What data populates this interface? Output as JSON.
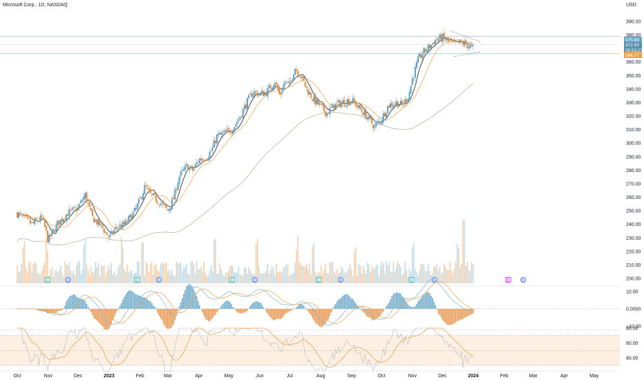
{
  "header": {
    "title": "Microsoft Corp., 1D, NASDAQ",
    "currency": "USD"
  },
  "chart_data": {
    "type": "candlestick",
    "title": "Microsoft Corp., 1D, NASDAQ",
    "currency": "USD",
    "grid": false,
    "price_axis": {
      "ylim": [
        198,
        392
      ],
      "ticks": [
        390,
        380,
        370,
        360,
        350,
        340,
        330,
        320,
        310,
        300,
        290,
        280,
        270,
        260,
        250,
        240,
        230,
        220,
        210,
        200
      ]
    },
    "x_axis": {
      "range_days": [
        0,
        243
      ],
      "ticks": [
        {
          "label": "Oct",
          "day": 0
        },
        {
          "label": "Nov",
          "day": 31
        },
        {
          "label": "Dec",
          "day": 61
        },
        {
          "label": "2023",
          "day": 92
        },
        {
          "label": "Feb",
          "day": 123
        },
        {
          "label": "Mar",
          "day": 151
        },
        {
          "label": "Apr",
          "day": 182
        },
        {
          "label": "May",
          "day": 212
        },
        {
          "label": "Jun",
          "day": 243
        },
        {
          "label": "Jul",
          "day": 273
        },
        {
          "label": "Aug",
          "day": 304
        },
        {
          "label": "Sep",
          "day": 335
        },
        {
          "label": "Oct",
          "day": 365
        },
        {
          "label": "Nov",
          "day": 396
        },
        {
          "label": "Dec",
          "day": 426
        },
        {
          "label": "2024",
          "day": 457
        },
        {
          "label": "Feb",
          "day": 488
        },
        {
          "label": "Mar",
          "day": 517
        },
        {
          "label": "Apr",
          "day": 548
        },
        {
          "label": "May",
          "day": 578
        }
      ],
      "last_bar_day": 457,
      "end_day": 610
    },
    "price_key": [
      [
        0,
        248
      ],
      [
        15,
        240
      ],
      [
        25,
        245
      ],
      [
        31,
        228
      ],
      [
        40,
        240
      ],
      [
        50,
        248
      ],
      [
        61,
        252
      ],
      [
        68,
        262
      ],
      [
        75,
        245
      ],
      [
        85,
        238
      ],
      [
        92,
        230
      ],
      [
        100,
        238
      ],
      [
        108,
        240
      ],
      [
        118,
        250
      ],
      [
        123,
        258
      ],
      [
        128,
        268
      ],
      [
        133,
        262
      ],
      [
        140,
        258
      ],
      [
        151,
        250
      ],
      [
        157,
        260
      ],
      [
        162,
        275
      ],
      [
        170,
        283
      ],
      [
        176,
        280
      ],
      [
        182,
        288
      ],
      [
        190,
        290
      ],
      [
        195,
        295
      ],
      [
        200,
        305
      ],
      [
        207,
        307
      ],
      [
        215,
        310
      ],
      [
        222,
        318
      ],
      [
        230,
        330
      ],
      [
        236,
        338
      ],
      [
        243,
        336
      ],
      [
        250,
        338
      ],
      [
        258,
        346
      ],
      [
        263,
        335
      ],
      [
        268,
        345
      ],
      [
        273,
        343
      ],
      [
        278,
        356
      ],
      [
        284,
        350
      ],
      [
        290,
        340
      ],
      [
        297,
        332
      ],
      [
        304,
        327
      ],
      [
        310,
        322
      ],
      [
        318,
        328
      ],
      [
        325,
        330
      ],
      [
        335,
        332
      ],
      [
        340,
        328
      ],
      [
        350,
        320
      ],
      [
        358,
        312
      ],
      [
        365,
        318
      ],
      [
        372,
        328
      ],
      [
        380,
        330
      ],
      [
        386,
        328
      ],
      [
        392,
        335
      ],
      [
        396,
        348
      ],
      [
        402,
        362
      ],
      [
        408,
        368
      ],
      [
        414,
        372
      ],
      [
        420,
        377
      ],
      [
        426,
        378
      ],
      [
        432,
        375
      ],
      [
        438,
        373
      ],
      [
        444,
        374
      ],
      [
        450,
        373
      ],
      [
        457,
        370
      ]
    ],
    "last_price": 375.9,
    "price_labels": [
      {
        "text": "375.90",
        "price": 376.5,
        "color": "#6aa7c9"
      },
      {
        "text": "372.50",
        "price": 372.8,
        "color": "#5b8fae"
      },
      {
        "text": "05:53:27",
        "price": 368.8,
        "color": "#5b8fae"
      },
      {
        "text": "366.77",
        "price": 365.2,
        "color": "#e8a24d"
      }
    ],
    "h_lines": [
      {
        "price": 378.9,
        "color": "#9aa4af"
      },
      {
        "price": 366.3,
        "color": "#f0a656"
      }
    ],
    "triangle": {
      "upper": [
        [
          434,
          383
        ],
        [
          464,
          375
        ]
      ],
      "lower": [
        [
          438,
          364
        ],
        [
          464,
          367.5
        ]
      ]
    },
    "moving_averages": [
      {
        "name": "",
        "color": "#2a2e39",
        "lag": 6
      },
      {
        "name": "",
        "color": "#e8a24d",
        "lag": 15
      },
      {
        "name": "",
        "color": "#a5ae9c",
        "lag": 60
      }
    ],
    "volume": {
      "spike_days": [
        6,
        30,
        68,
        105,
        126,
        198,
        240,
        280,
        296,
        338,
        396,
        442
      ],
      "max_spike_day": 447
    },
    "events": [
      {
        "type": "E",
        "day": 30,
        "color": "#26a69a"
      },
      {
        "type": "D",
        "day": 51,
        "color": "#2962ff"
      },
      {
        "type": "E",
        "day": 120,
        "color": "#26a69a"
      },
      {
        "type": "D",
        "day": 142,
        "color": "#2962ff"
      },
      {
        "type": "E",
        "day": 215,
        "color": "#26a69a"
      },
      {
        "type": "D",
        "day": 238,
        "color": "#2962ff"
      },
      {
        "type": "E",
        "day": 302,
        "color": "#26a69a"
      },
      {
        "type": "D",
        "day": 324,
        "color": "#2962ff"
      },
      {
        "type": "E",
        "day": 395,
        "color": "#26a69a"
      },
      {
        "type": "D",
        "day": 418,
        "color": "#2962ff"
      },
      {
        "type": "E",
        "day": 492,
        "color": "#d500f9"
      },
      {
        "type": "D",
        "day": 507,
        "color": "#2962ff"
      }
    ],
    "macd_axis": {
      "ticks": [
        {
          "label": "10.00",
          "value": 10
        },
        {
          "label": "0.0000",
          "value": 0
        },
        {
          "label": "−10.00",
          "value": -10
        }
      ]
    },
    "rsi_axis": {
      "ticks": [
        {
          "label": "80.00",
          "value": 80
        },
        {
          "label": "60.00",
          "value": 60
        },
        {
          "label": "40.00",
          "value": 40
        }
      ],
      "band": [
        30,
        70
      ]
    }
  },
  "colors": {
    "up": "#5b9ec2",
    "down": "#e38a3a",
    "bg": "#ffffff",
    "text": "#131722"
  }
}
